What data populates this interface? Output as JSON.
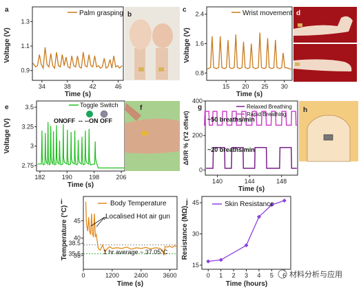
{
  "watermark": "材料分析与应用",
  "colors": {
    "orange": "#c87a1c",
    "green": "#1fbf1f",
    "purple1": "#7a1f8a",
    "purple2": "#cc44cc",
    "violet": "#8a3fe0"
  },
  "panels": {
    "a": {
      "label": "a",
      "legend": "Palm grasping",
      "xlabel": "Time (s)",
      "ylabel": "Voltage (V)"
    },
    "b": {
      "label": "b"
    },
    "c": {
      "label": "c",
      "legend": "Wrist movement",
      "xlabel": "Time (s)",
      "ylabel": "Voltage (V)"
    },
    "d": {
      "label": "d"
    },
    "e": {
      "label": "e",
      "legend": "Toggle Switch",
      "xlabel": "Time (s)",
      "ylabel": "Voltage (V)",
      "annotations": [
        "ON",
        "OFF",
        "--",
        "--ON",
        "OFF"
      ]
    },
    "f": {
      "label": "f"
    },
    "g": {
      "label": "g",
      "legend1": "Relaxed Breathing",
      "legend2": "Rapid Breathing",
      "xlabel": "Time (s)",
      "ylabel": "ΔR/R % (Y2 offset)",
      "ann1": "~50 breaths/min",
      "ann2": "~20 breaths/min"
    },
    "h": {
      "label": "h"
    },
    "i": {
      "label": "i",
      "legend": "Body Temperature",
      "xlabel": "Time (s)",
      "ylabel": "Temperature (°C)",
      "ann1": "Localised Hot air gun",
      "ann2": "1 hr average ~ 37.05°C"
    },
    "j": {
      "label": "j",
      "legend": "Skin Resistance",
      "xlabel": "Time (hours)",
      "ylabel": "Resistance (MΩ)"
    }
  },
  "chart_data": [
    {
      "id": "a",
      "type": "line",
      "title": "",
      "xlabel": "Time (s)",
      "ylabel": "Voltage (V)",
      "xlim": [
        32.5,
        46.8
      ],
      "ylim": [
        0.82,
        1.42
      ],
      "xticks": [
        34,
        38,
        42,
        46
      ],
      "yticks": [
        0.9,
        1.1,
        1.3
      ],
      "series": [
        {
          "name": "Palm grasping",
          "x": [
            32.6,
            33.0,
            33.3,
            33.6,
            33.9,
            34.2,
            34.5,
            34.8,
            35.1,
            35.4,
            35.7,
            36.0,
            36.3,
            36.6,
            36.9,
            37.2,
            37.5,
            37.8,
            38.1,
            38.4,
            38.7,
            39.0,
            39.3,
            39.6,
            39.9,
            40.2,
            40.5,
            40.8,
            41.1,
            41.4,
            41.7,
            42.0,
            42.3,
            42.6,
            42.9,
            43.2,
            43.5,
            43.8,
            44.1,
            44.4,
            44.7,
            45.0,
            45.3,
            45.6,
            45.9,
            46.2,
            46.6
          ],
          "y": [
            0.96,
            0.93,
            0.94,
            1.03,
            0.95,
            0.92,
            1.09,
            0.95,
            0.93,
            1.04,
            0.94,
            0.92,
            1.05,
            0.94,
            0.93,
            1.03,
            0.94,
            1.01,
            0.93,
            0.92,
            1.02,
            0.94,
            0.93,
            1.02,
            0.93,
            0.92,
            1.05,
            0.94,
            0.93,
            1.03,
            0.94,
            0.93,
            1.02,
            0.93,
            0.94,
            0.92,
            0.93,
            1.0,
            0.92,
            0.93,
            0.99,
            0.92,
            1.02,
            0.93,
            0.94,
            0.92,
            0.94
          ]
        }
      ]
    },
    {
      "id": "c",
      "type": "line",
      "title": "",
      "xlabel": "Time (s)",
      "ylabel": "Voltage (V)",
      "xlim": [
        10,
        32
      ],
      "ylim": [
        0.6,
        2.6
      ],
      "xticks": [
        15,
        20,
        25,
        30
      ],
      "yticks": [
        0.8,
        1.6,
        2.4
      ],
      "series": [
        {
          "name": "Wrist movement",
          "x": [
            10,
            11,
            11.4,
            11.8,
            12.5,
            13.1,
            13.5,
            13.9,
            14.6,
            15.1,
            15.5,
            15.9,
            16.5,
            17.1,
            17.5,
            17.9,
            18.5,
            19.1,
            19.5,
            19.9,
            20.6,
            21.1,
            21.5,
            21.9,
            22.6,
            23.3,
            23.7,
            24.1,
            24.8,
            25.3,
            25.7,
            26.1,
            26.8,
            27.3,
            27.7,
            28.1,
            28.8,
            29.3,
            29.7,
            30.1,
            31,
            31.8
          ],
          "y": [
            0.9,
            0.95,
            1.8,
            0.95,
            0.92,
            0.95,
            1.8,
            0.95,
            0.92,
            0.95,
            1.7,
            0.95,
            0.92,
            0.95,
            1.85,
            0.95,
            0.92,
            0.95,
            1.65,
            0.95,
            0.92,
            0.95,
            1.6,
            0.95,
            0.92,
            0.95,
            1.9,
            0.95,
            0.92,
            0.95,
            1.75,
            0.95,
            0.92,
            0.95,
            1.7,
            0.95,
            0.92,
            0.95,
            1.35,
            0.95,
            0.93,
            0.9
          ]
        }
      ]
    },
    {
      "id": "e",
      "type": "line",
      "title": "",
      "xlabel": "Time (s)",
      "ylabel": "Voltage (V)",
      "xlim": [
        181,
        207
      ],
      "ylim": [
        2.68,
        3.58
      ],
      "xticks": [
        182,
        190,
        198,
        206
      ],
      "yticks": [
        2.75,
        3.0,
        3.25,
        3.5
      ],
      "series": [
        {
          "name": "Toggle Switch",
          "spike_x": [
            182.6,
            183.6,
            184.4,
            185.2,
            186.0,
            186.9,
            187.8,
            188.9,
            190.1,
            191.2,
            192.3,
            193.3,
            194.4,
            195.4,
            196.5,
            198.3
          ],
          "spike_y": [
            3.2,
            3.17,
            3.31,
            3.26,
            3.19,
            3.27,
            3.07,
            3.28,
            3.21,
            3.18,
            3.2,
            3.08,
            3.12,
            3.2,
            3.22,
            3.06
          ],
          "baseline": 2.77,
          "after": 2.72
        }
      ]
    },
    {
      "id": "g",
      "type": "line",
      "title": "",
      "xlabel": "Time (s)",
      "ylabel": "ΔR/R % (Y2 offset)",
      "xlim": [
        138.5,
        150
      ],
      "ylim": [
        -30,
        400
      ],
      "xticks": [
        140,
        144,
        148
      ],
      "yticks": [
        0,
        200,
        400
      ],
      "series": [
        {
          "name": "Rapid Breathing",
          "x": [
            138.7,
            139.7,
            140.9,
            142.1,
            143.3,
            144.6,
            145.8,
            147.0,
            148.3,
            149.5
          ],
          "width": 0.6,
          "low": 260,
          "high": 340
        },
        {
          "name": "Relaxed Breathing",
          "x": [
            140.2,
            142.5,
            145.4,
            148.5
          ],
          "width": 1.5,
          "low": 10,
          "high": 130
        }
      ]
    },
    {
      "id": "i",
      "type": "line",
      "title": "",
      "xlabel": "Time (s)",
      "ylabel": "Temperature (°C)",
      "xlim": [
        0,
        3900
      ],
      "ylim": [
        31,
        52
      ],
      "xticks": [
        0,
        1200,
        2400,
        3600
      ],
      "yticks": [
        35,
        35.5,
        38.5,
        40,
        45
      ],
      "hlines": [
        38,
        35.5
      ],
      "series": [
        {
          "name": "Body Temperature",
          "x": [
            100,
            130,
            180,
            220,
            260,
            300,
            340,
            380,
            420,
            460,
            500,
            540,
            580,
            620,
            700,
            800,
            900,
            1000,
            1100,
            1200,
            1400,
            1600,
            1800,
            2000,
            2200,
            2400,
            2600,
            2800,
            3000,
            3200,
            3300,
            3350,
            3400,
            3500,
            3600,
            3700,
            3800,
            3900
          ],
          "y": [
            50.5,
            44,
            42,
            46,
            42,
            41,
            47,
            41,
            40.5,
            47,
            40.5,
            41,
            39,
            37,
            36.5,
            38,
            36,
            37,
            37.5,
            37,
            37.2,
            37,
            37.4,
            36.8,
            37.2,
            37,
            37.3,
            36.9,
            37.2,
            37.0,
            36.2,
            35.0,
            37.6,
            37.4,
            37.7,
            37.3,
            37.8,
            37.5
          ]
        }
      ]
    },
    {
      "id": "j",
      "type": "line",
      "title": "",
      "xlabel": "Time (hours)",
      "ylabel": "Resistance (MΩ)",
      "xlim": [
        -0.5,
        6.5
      ],
      "ylim": [
        13,
        48
      ],
      "xticks": [
        0,
        1,
        2,
        3,
        4,
        5,
        6
      ],
      "yticks": [
        15,
        30,
        45
      ],
      "series": [
        {
          "name": "Skin Resistance",
          "x": [
            0,
            1,
            3,
            4,
            5,
            6
          ],
          "y": [
            16.8,
            17.5,
            24.5,
            38.2,
            44,
            46
          ]
        }
      ]
    }
  ]
}
